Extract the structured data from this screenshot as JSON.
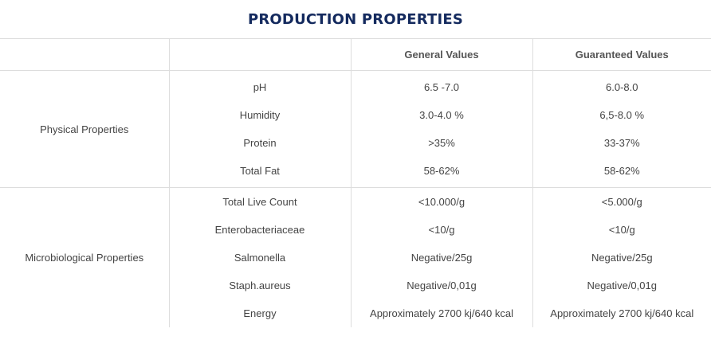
{
  "title": "PRODUCTION PROPERTIES",
  "headers": [
    "",
    "",
    "General Values",
    "Guaranteed Values"
  ],
  "groups": [
    {
      "label": "Physical Properties",
      "rows": [
        {
          "name": "pH",
          "general": "6.5 -7.0",
          "guaranteed": "6.0-8.0"
        },
        {
          "name": "Humidity",
          "general": "3.0-4.0 %",
          "guaranteed": "6,5-8.0 %"
        },
        {
          "name": "Protein",
          "general": ">35%",
          "guaranteed": "33-37%"
        },
        {
          "name": "Total Fat",
          "general": "58-62%",
          "guaranteed": "58-62%"
        }
      ]
    },
    {
      "label": "Microbiological Properties",
      "rows": [
        {
          "name": "Total Live Count",
          "general": "<10.000/g",
          "guaranteed": "<5.000/g"
        },
        {
          "name": "Enterobacteriaceae",
          "general": "<10/g",
          "guaranteed": "<10/g"
        },
        {
          "name": "Salmonella",
          "general": "Negative/25g",
          "guaranteed": "Negative/25g"
        },
        {
          "name": "Staph.aureus",
          "general": "Negative/0,01g",
          "guaranteed": "Negative/0,01g"
        },
        {
          "name": "Energy",
          "general": "Approximately 2700 kj/640 kcal",
          "guaranteed": "Approximately 2700 kj/640 kcal"
        }
      ]
    }
  ]
}
